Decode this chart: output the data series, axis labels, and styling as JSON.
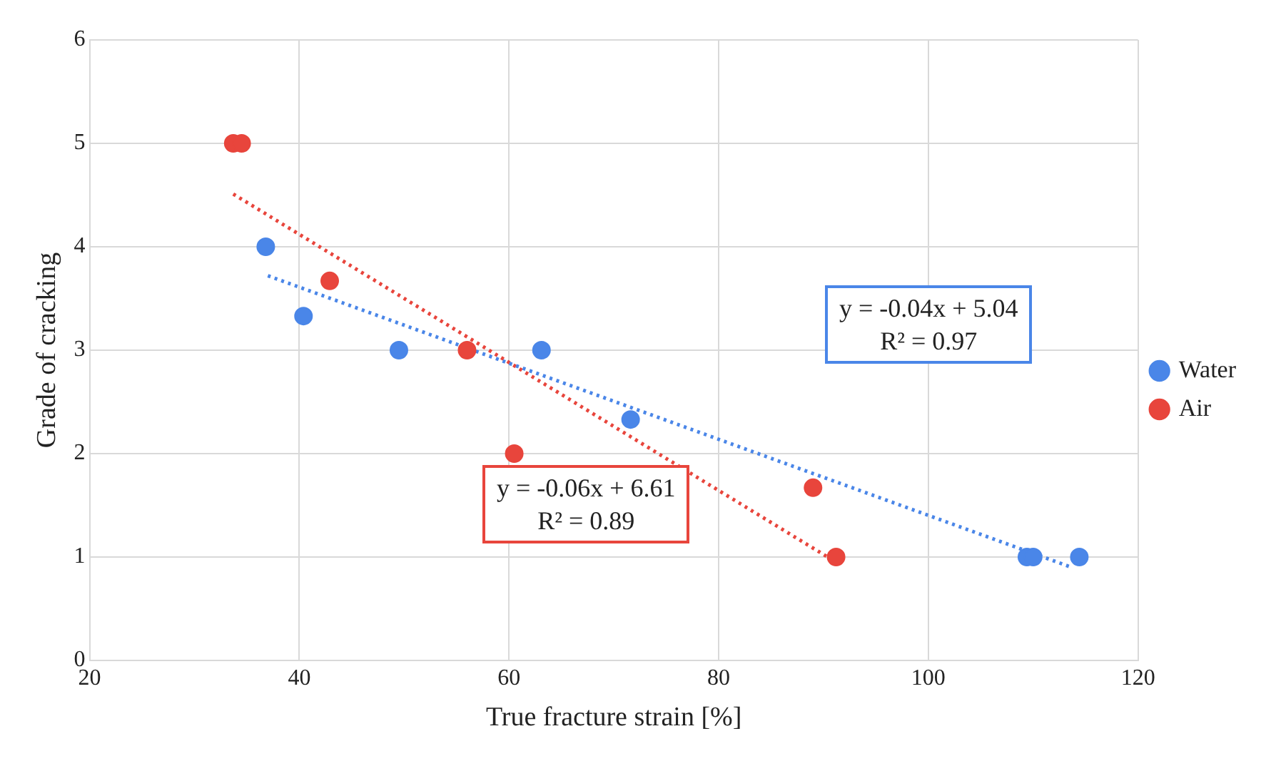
{
  "chart_data": {
    "type": "scatter",
    "xlabel": "True fracture strain [%]",
    "ylabel": "Grade of cracking",
    "xlim": [
      20,
      120
    ],
    "xticks": [
      20,
      40,
      60,
      80,
      100,
      120
    ],
    "ylim": [
      0,
      6
    ],
    "yticks": [
      0,
      1,
      2,
      3,
      4,
      5,
      6
    ],
    "grid": true,
    "legend": "right",
    "marker": "circle",
    "series": [
      {
        "name": "Water",
        "color": "#4a86e8",
        "x": [
          36.8,
          40.4,
          49.5,
          63.1,
          71.6,
          109.4,
          110,
          114.4
        ],
        "values": [
          4,
          3.33,
          3,
          3,
          2.33,
          1,
          1,
          1
        ]
      },
      {
        "name": "Air",
        "color": "#e8453c",
        "x": [
          33.7,
          34.5,
          42.9,
          56,
          60.5,
          89,
          91.2
        ],
        "values": [
          5,
          5,
          3.67,
          3,
          2,
          1.67,
          1
        ]
      },
      {
        "type": "line",
        "color": "#4a86e8",
        "line_style": "dotted",
        "marker": "none",
        "x": [
          37,
          113.4
        ],
        "values": [
          3.72,
          0.91
        ]
      },
      {
        "type": "line",
        "color": "#e8453c",
        "line_style": "dotted",
        "marker": "none",
        "x": [
          33.7,
          91.2
        ],
        "values": [
          4.51,
          0.95
        ]
      }
    ],
    "annotations": [
      "y = -0.04x + 5.04\nR² = 0.97",
      "y = -0.06x + 6.61\nR² = 0.89"
    ]
  }
}
